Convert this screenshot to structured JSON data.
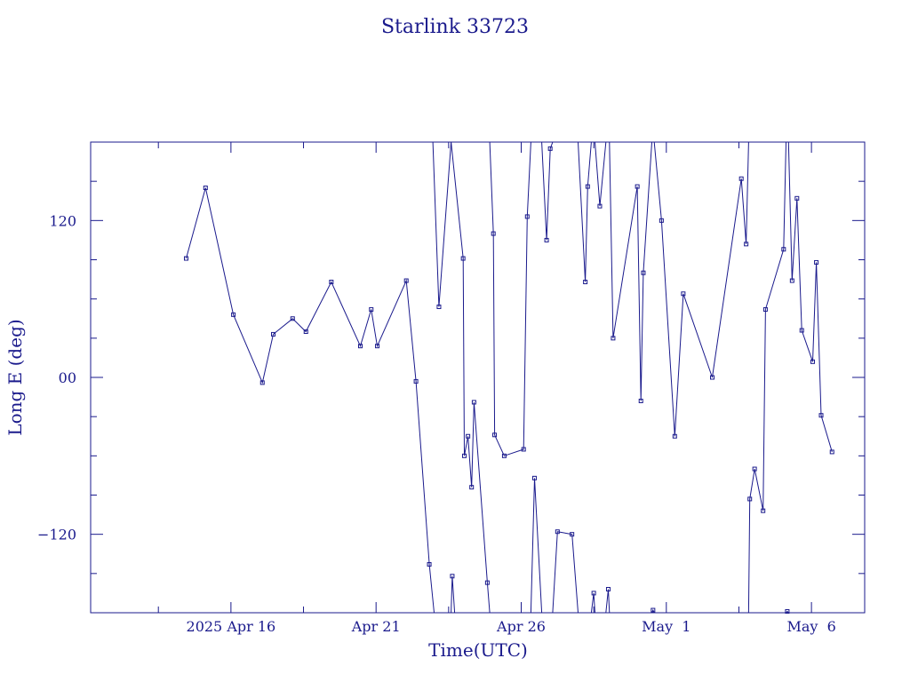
{
  "chart_data": {
    "type": "line",
    "title": "Starlink 33723",
    "xlabel": "Time(UTC)",
    "ylabel": "Long E (deg)",
    "xlim": [
      "2025-04-11T04:00",
      "2025-05-07T20:00"
    ],
    "ylim": [
      -180,
      180
    ],
    "x_ticks": [
      {
        "label": "2025 Apr 16",
        "date": "2025-04-16"
      },
      {
        "label": "Apr 21",
        "date": "2025-04-21"
      },
      {
        "label": "Apr 26",
        "date": "2025-04-26"
      },
      {
        "label": "May  1",
        "date": "2025-05-01"
      },
      {
        "label": "May  6",
        "date": "2025-05-06"
      }
    ],
    "y_ticks": [
      {
        "label": "120",
        "value": 120
      },
      {
        "label": "00",
        "value": 0
      },
      {
        "label": "−120",
        "value": -120
      }
    ],
    "grid": false,
    "color": "#1a1a8c",
    "series": [
      {
        "points": [
          [
            "2025-04-14T11:00",
            91
          ],
          [
            "2025-04-15T03:00",
            145
          ],
          [
            "2025-04-16T02:00",
            48
          ],
          [
            "2025-04-17T02:00",
            -4
          ],
          [
            "2025-04-17T11:00",
            33
          ],
          [
            "2025-04-18T03:00",
            45
          ],
          [
            "2025-04-18T14:00",
            35
          ],
          [
            "2025-04-19T11:00",
            73
          ],
          [
            "2025-04-20T11:00",
            24
          ],
          [
            "2025-04-20T20:00",
            52
          ],
          [
            "2025-04-21T01:00",
            24
          ],
          [
            "2025-04-22T01:00",
            74
          ],
          [
            "2025-04-22T09:00",
            -3
          ],
          [
            "2025-04-22T20:00",
            -143
          ],
          [
            "2025-04-23T00:00",
            -180
          ]
        ]
      },
      {
        "points": [
          [
            "2025-04-22T23:00",
            180
          ],
          [
            "2025-04-23T04:00",
            54
          ],
          [
            "2025-04-23T14:00",
            180
          ]
        ]
      },
      {
        "points": [
          [
            "2025-04-23T14:00",
            -180
          ],
          [
            "2025-04-23T15:00",
            -152
          ],
          [
            "2025-04-23T17:00",
            -180
          ]
        ]
      },
      {
        "points": [
          [
            "2025-04-23T14:00",
            180
          ],
          [
            "2025-04-24T00:00",
            91
          ],
          [
            "2025-04-24T01:00",
            -60
          ],
          [
            "2025-04-24T04:00",
            -45
          ],
          [
            "2025-04-24T07:00",
            -84
          ],
          [
            "2025-04-24T09:00",
            -19
          ],
          [
            "2025-04-24T20:00",
            -157
          ],
          [
            "2025-04-24T22:00",
            -180
          ]
        ]
      },
      {
        "points": [
          [
            "2025-04-24T22:00",
            180
          ],
          [
            "2025-04-25T01:00",
            110
          ],
          [
            "2025-04-25T02:00",
            -44
          ],
          [
            "2025-04-25T10:00",
            -60
          ],
          [
            "2025-04-26T02:00",
            -55
          ],
          [
            "2025-04-26T05:00",
            123
          ],
          [
            "2025-04-26T08:00",
            180
          ]
        ]
      },
      {
        "points": [
          [
            "2025-04-26T08:00",
            -180
          ],
          [
            "2025-04-26T11:00",
            -77
          ],
          [
            "2025-04-26T17:00",
            -180
          ]
        ]
      },
      {
        "points": [
          [
            "2025-04-26T17:00",
            180
          ],
          [
            "2025-04-26T21:00",
            105
          ],
          [
            "2025-04-27T00:00",
            175
          ],
          [
            "2025-04-27T02:00",
            180
          ]
        ]
      },
      {
        "points": [
          [
            "2025-04-27T02:00",
            -180
          ],
          [
            "2025-04-27T06:00",
            -118
          ],
          [
            "2025-04-27T18:00",
            -120
          ],
          [
            "2025-04-27T23:00",
            -180
          ]
        ]
      },
      {
        "points": [
          [
            "2025-04-27T23:00",
            180
          ],
          [
            "2025-04-28T05:00",
            73
          ],
          [
            "2025-04-28T07:00",
            146
          ],
          [
            "2025-04-28T10:00",
            180
          ]
        ]
      },
      {
        "points": [
          [
            "2025-04-28T10:00",
            -180
          ],
          [
            "2025-04-28T12:00",
            -165
          ],
          [
            "2025-04-28T13:00",
            -180
          ]
        ]
      },
      {
        "points": [
          [
            "2025-04-28T13:00",
            180
          ],
          [
            "2025-04-28T17:00",
            131
          ],
          [
            "2025-04-28T22:00",
            180
          ]
        ]
      },
      {
        "points": [
          [
            "2025-04-28T22:00",
            -180
          ],
          [
            "2025-04-29T00:00",
            -162
          ],
          [
            "2025-04-29T01:00",
            -180
          ]
        ]
      },
      {
        "points": [
          [
            "2025-04-29T01:00",
            180
          ],
          [
            "2025-04-29T04:00",
            30
          ],
          [
            "2025-04-30T00:00",
            146
          ],
          [
            "2025-04-30T03:00",
            -18
          ],
          [
            "2025-04-30T05:00",
            80
          ],
          [
            "2025-04-30T12:00",
            180
          ]
        ]
      },
      {
        "points": [
          [
            "2025-04-30T12:00",
            -180
          ],
          [
            "2025-04-30T13:00",
            -178
          ],
          [
            "2025-04-30T14:00",
            -180
          ]
        ]
      },
      {
        "points": [
          [
            "2025-04-30T14:00",
            180
          ],
          [
            "2025-04-30T20:00",
            120
          ],
          [
            "2025-05-01T07:00",
            -45
          ],
          [
            "2025-05-01T14:00",
            64
          ],
          [
            "2025-05-02T14:00",
            0
          ],
          [
            "2025-05-03T14:00",
            152
          ],
          [
            "2025-05-03T18:00",
            102
          ],
          [
            "2025-05-03T20:00",
            180
          ]
        ]
      },
      {
        "points": [
          [
            "2025-05-03T20:00",
            -180
          ],
          [
            "2025-05-03T21:00",
            -93
          ],
          [
            "2025-05-04T01:00",
            -70
          ],
          [
            "2025-05-04T08:00",
            -102
          ],
          [
            "2025-05-04T10:00",
            52
          ],
          [
            "2025-05-05T01:00",
            98
          ],
          [
            "2025-05-05T03:00",
            180
          ]
        ]
      },
      {
        "points": [
          [
            "2025-05-05T03:00",
            -180
          ],
          [
            "2025-05-05T04:00",
            -179
          ],
          [
            "2025-05-05T05:00",
            -180
          ]
        ]
      },
      {
        "points": [
          [
            "2025-05-05T05:00",
            180
          ],
          [
            "2025-05-05T08:00",
            74
          ],
          [
            "2025-05-05T12:00",
            137
          ],
          [
            "2025-05-05T16:00",
            36
          ],
          [
            "2025-05-06T01:00",
            12
          ],
          [
            "2025-05-06T04:00",
            88
          ],
          [
            "2025-05-06T08:00",
            -29
          ],
          [
            "2025-05-06T17:00",
            -57
          ]
        ]
      }
    ]
  }
}
